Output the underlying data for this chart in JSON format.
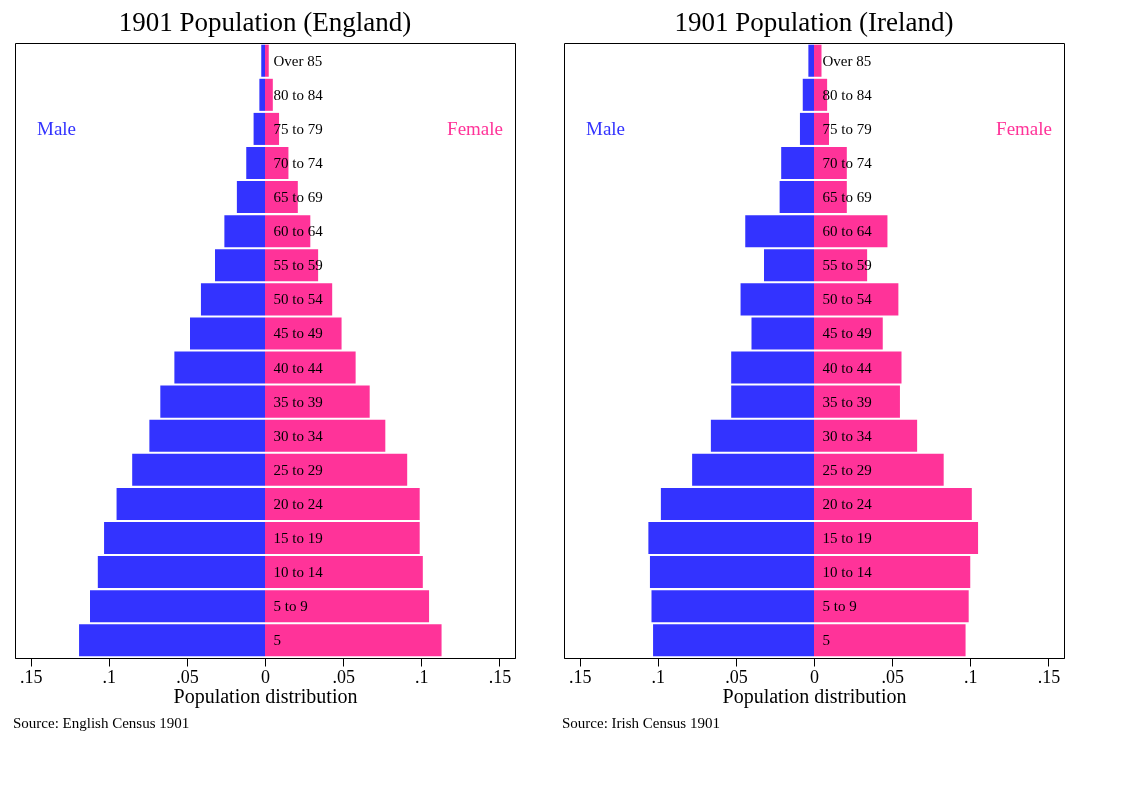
{
  "chart_data": [
    {
      "type": "bar",
      "orientation": "horizontal",
      "stacked": true,
      "title": "1901 Population (England)",
      "xlabel": "Population distribution",
      "categories": [
        "Over 85",
        "80 to 84",
        "75 to 79",
        "70 to 74",
        "65 to 69",
        "60 to 64",
        "55 to 59",
        "50 to 54",
        "45 to 49",
        "40 to 44",
        "35 to 39",
        "30 to 34",
        "25 to 29",
        "20 to 24",
        "15 to 19",
        "10 to 14",
        "5 to 9",
        "5"
      ],
      "series": [
        {
          "name": "Male",
          "color": "#3333ff",
          "values": [
            -0.0024,
            -0.0036,
            -0.0073,
            -0.012,
            -0.018,
            -0.026,
            -0.032,
            -0.041,
            -0.048,
            -0.058,
            -0.067,
            -0.074,
            -0.085,
            -0.095,
            -0.103,
            -0.107,
            -0.112,
            -0.119
          ]
        },
        {
          "name": "Female",
          "color": "#ff3399",
          "values": [
            0.0024,
            0.005,
            0.009,
            0.015,
            0.021,
            0.029,
            0.034,
            0.043,
            0.049,
            0.058,
            0.067,
            0.077,
            0.091,
            0.099,
            0.099,
            0.101,
            0.105,
            0.113
          ]
        }
      ],
      "xlim": [
        -0.16,
        0.16
      ],
      "xticks": [
        {
          "value": -0.15,
          "label": ".15"
        },
        {
          "value": -0.1,
          "label": ".1"
        },
        {
          "value": -0.05,
          "label": ".05"
        },
        0,
        {
          "value": 0.05,
          "label": ".05"
        },
        {
          "value": 0.1,
          "label": ".1"
        },
        {
          "value": 0.15,
          "label": ".15"
        }
      ],
      "annotations": [
        "Source: English Census 1901"
      ]
    },
    {
      "type": "bar",
      "orientation": "horizontal",
      "stacked": true,
      "title": "1901 Population (Ireland)",
      "xlabel": "Population distribution",
      "categories": [
        "Over 85",
        "80 to 84",
        "75 to 79",
        "70 to 74",
        "65 to 69",
        "60 to 64",
        "55 to 59",
        "50 to 54",
        "45 to 49",
        "40 to 44",
        "35 to 39",
        "30 to 34",
        "25 to 29",
        "20 to 24",
        "15 to 19",
        "10 to 14",
        "5 to 9",
        "5"
      ],
      "series": [
        {
          "name": "Male",
          "color": "#3333ff",
          "values": [
            -0.0036,
            -0.0072,
            -0.009,
            -0.021,
            -0.022,
            -0.044,
            -0.032,
            -0.047,
            -0.04,
            -0.053,
            -0.053,
            -0.066,
            -0.078,
            -0.098,
            -0.106,
            -0.105,
            -0.104,
            -0.103
          ]
        },
        {
          "name": "Female",
          "color": "#ff3399",
          "values": [
            0.0048,
            0.0084,
            0.0096,
            0.021,
            0.021,
            0.047,
            0.034,
            0.054,
            0.044,
            0.056,
            0.055,
            0.066,
            0.083,
            0.101,
            0.105,
            0.1,
            0.099,
            0.097
          ]
        }
      ],
      "xlim": [
        -0.16,
        0.16
      ],
      "xticks": [
        {
          "value": -0.15,
          "label": ".15"
        },
        {
          "value": -0.1,
          "label": ".1"
        },
        {
          "value": -0.05,
          "label": ".05"
        },
        0,
        {
          "value": 0.05,
          "label": ".05"
        },
        {
          "value": 0.1,
          "label": ".1"
        },
        {
          "value": 0.15,
          "label": ".15"
        }
      ],
      "annotations": [
        "Source: Irish Census 1901"
      ]
    }
  ]
}
